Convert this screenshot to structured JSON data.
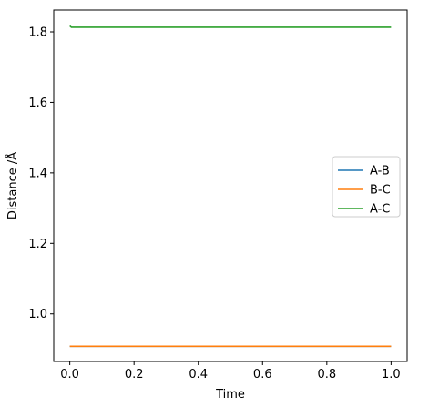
{
  "chart_data": {
    "type": "line",
    "title": "",
    "xlabel": "Time",
    "ylabel": "Distance /Å",
    "xlim": [
      -0.05,
      1.05
    ],
    "ylim": [
      0.865,
      1.862
    ],
    "xticks": [
      0.0,
      0.2,
      0.4,
      0.6,
      0.8,
      1.0
    ],
    "xtick_labels": [
      "0.0",
      "0.2",
      "0.4",
      "0.6",
      "0.8",
      "1.0"
    ],
    "yticks": [
      1.0,
      1.2,
      1.4,
      1.6,
      1.8
    ],
    "ytick_labels": [
      "1.0",
      "1.2",
      "1.4",
      "1.6",
      "1.8"
    ],
    "grid": false,
    "legend_position": "center-right",
    "series": [
      {
        "name": "A-B",
        "color": "#1f77b4",
        "x": [
          0.0,
          1.0
        ],
        "y": [
          0.908,
          0.908
        ]
      },
      {
        "name": "B-C",
        "color": "#ff7f0e",
        "x": [
          0.0,
          1.0
        ],
        "y": [
          0.908,
          0.908
        ]
      },
      {
        "name": "A-C",
        "color": "#2ca02c",
        "x": [
          0.0,
          0.005,
          1.0
        ],
        "y": [
          1.817,
          1.813,
          1.813
        ]
      }
    ]
  }
}
